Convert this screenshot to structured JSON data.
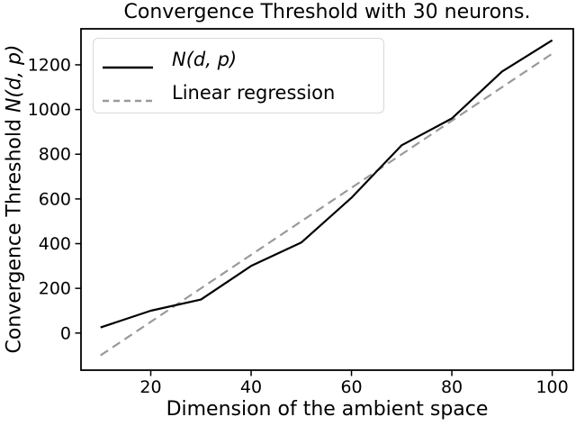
{
  "figure": {
    "ylabel_prefix": "Convergence Threshold ",
    "ylabel_math": "N(d, p)"
  },
  "chart_data": {
    "type": "line",
    "title": "Convergence Threshold with 30 neurons.",
    "xlabel": "Dimension of the ambient space",
    "ylabel": "Convergence Threshold N(d, p)",
    "x_ticks": [
      20,
      40,
      60,
      80,
      100
    ],
    "y_ticks": [
      0,
      200,
      400,
      600,
      800,
      1000,
      1200
    ],
    "xlim": [
      6.1,
      104.2
    ],
    "ylim": [
      -166,
      1361
    ],
    "grid": false,
    "legend_position": "upper left",
    "frame_color": "#000000",
    "series": [
      {
        "name": "N(d, p)",
        "style": "solid",
        "italic_label": true,
        "color": "#000000",
        "x": [
          10,
          20,
          30,
          40,
          50,
          60,
          70,
          80,
          90,
          100
        ],
        "y": [
          25,
          100,
          150,
          300,
          405,
          605,
          840,
          960,
          1170,
          1310
        ]
      },
      {
        "name": "Linear regression",
        "style": "dashed",
        "italic_label": false,
        "color": "#9a9a9a",
        "x": [
          10,
          100
        ],
        "y": [
          -100,
          1250
        ]
      }
    ]
  }
}
